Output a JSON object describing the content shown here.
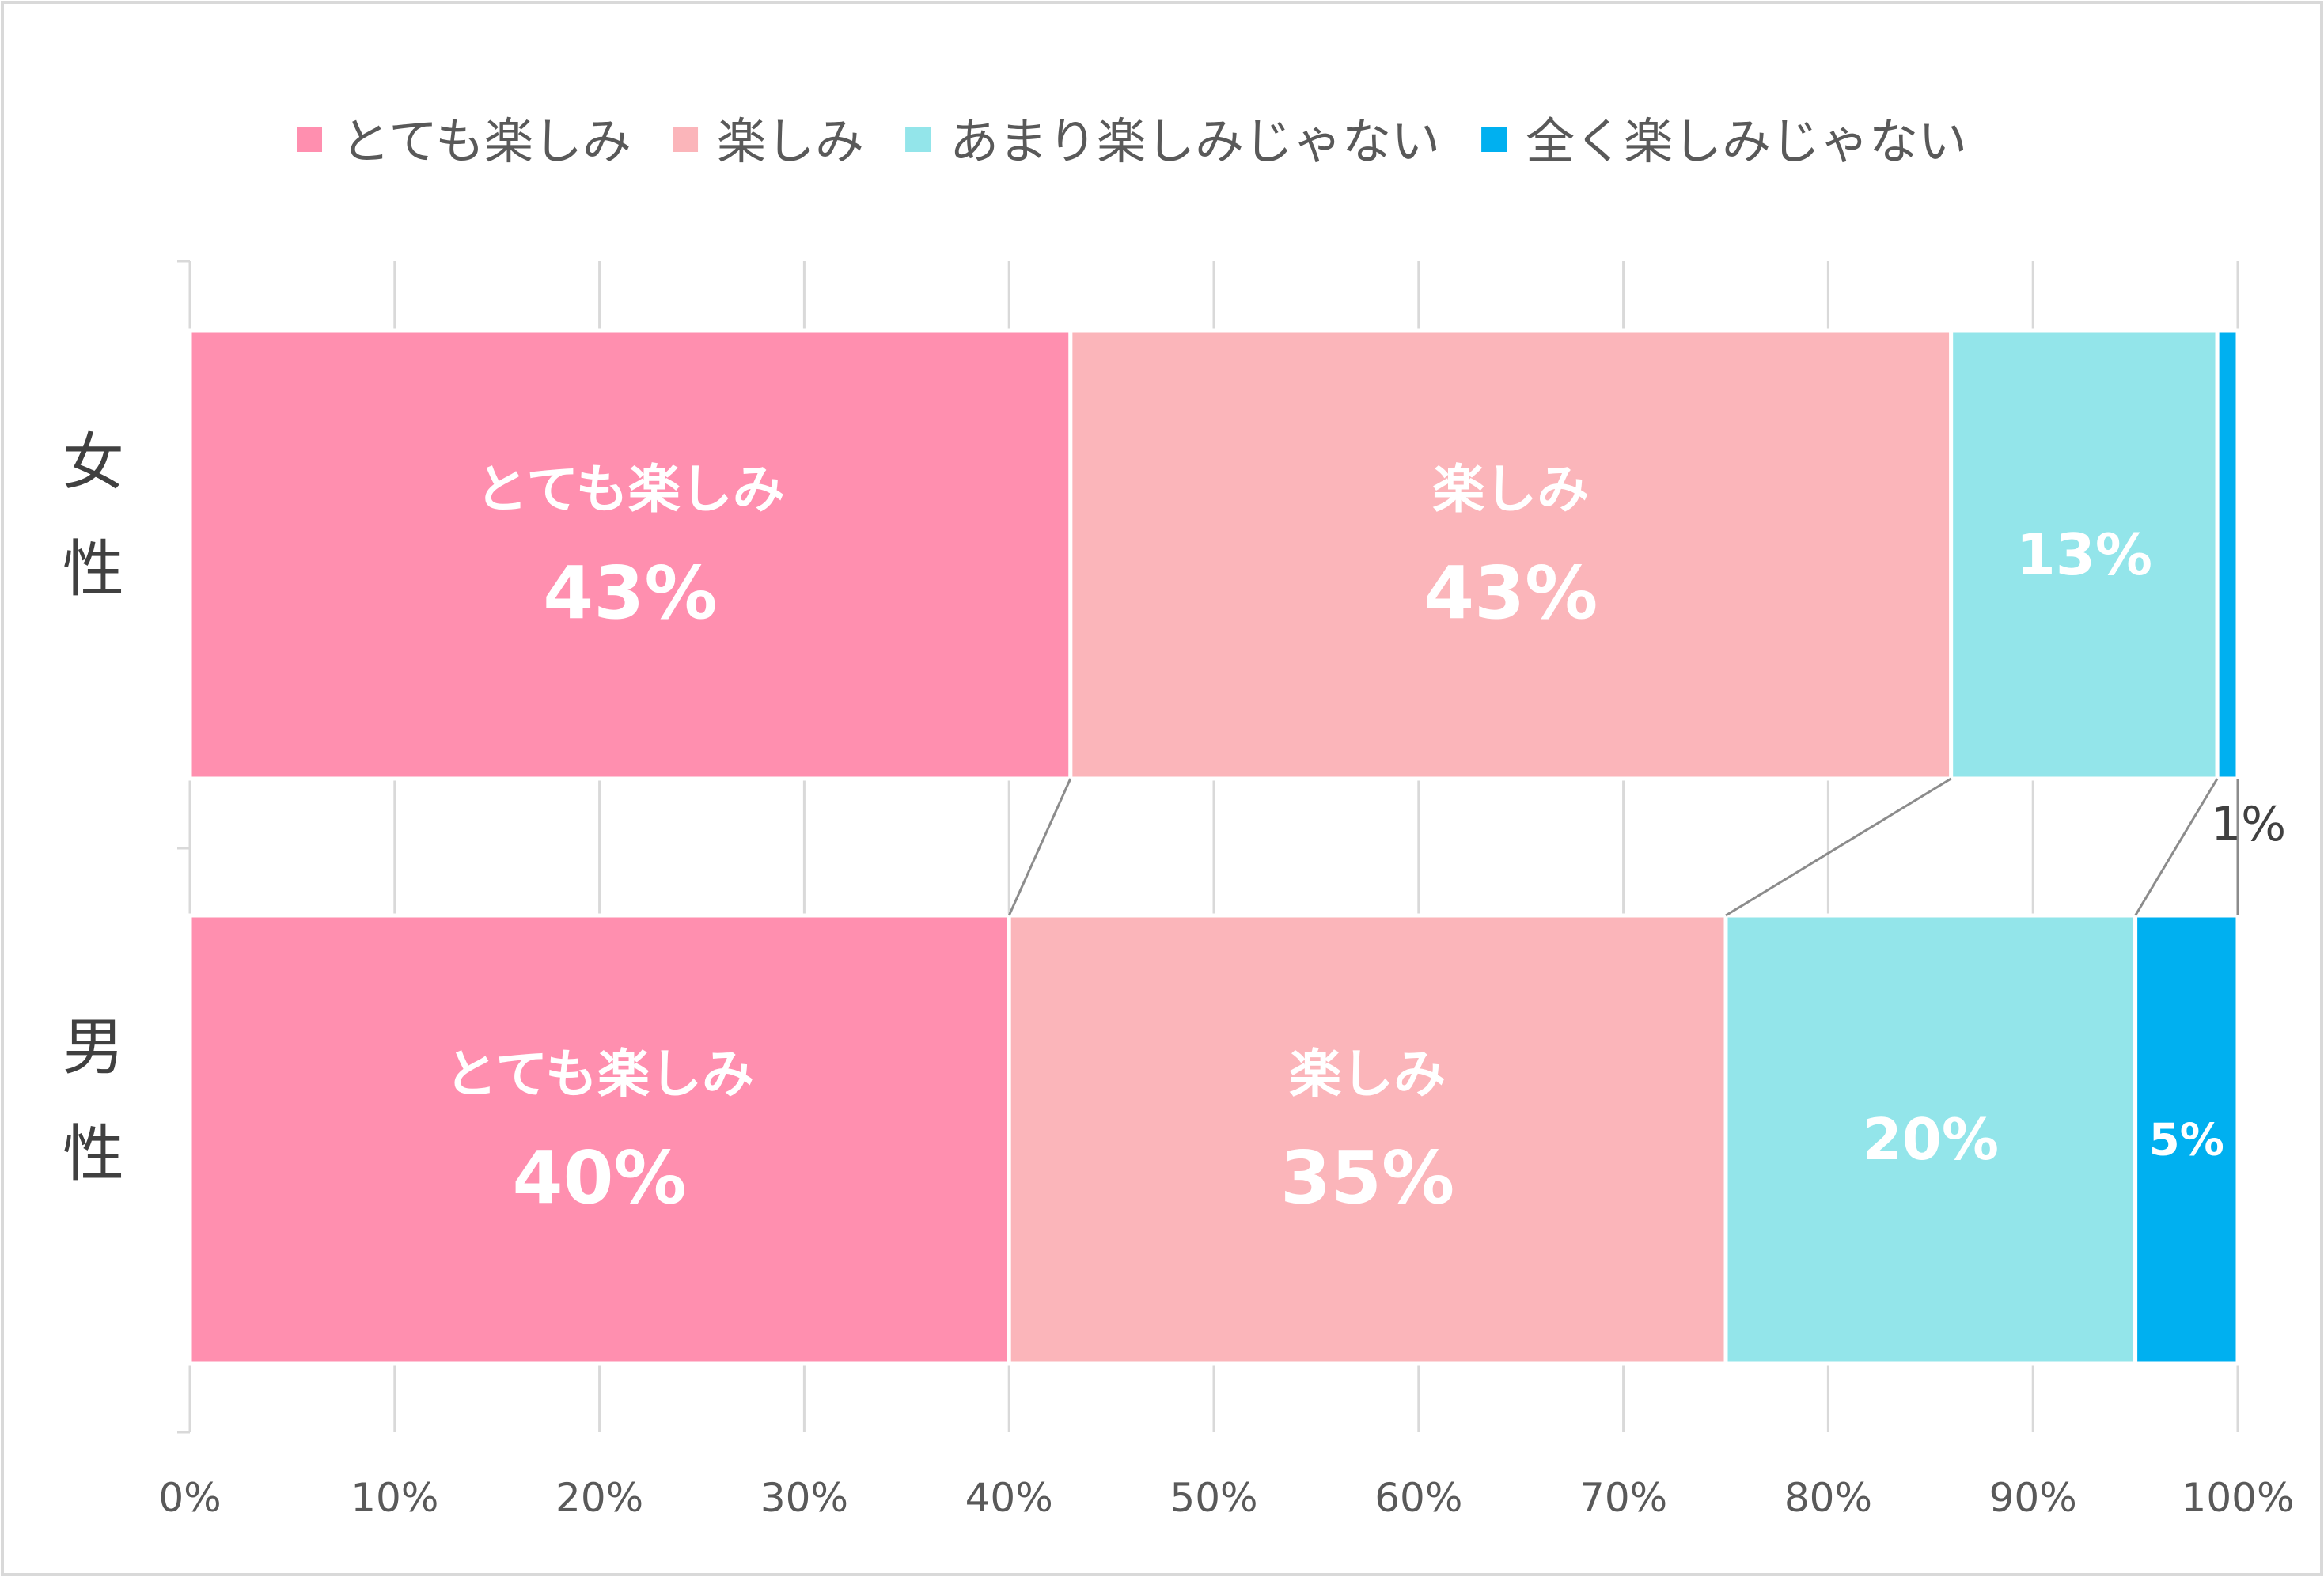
{
  "chart_data": {
    "type": "bar",
    "orientation": "horizontal",
    "stacked": true,
    "percent": true,
    "categories": [
      "女性",
      "男性"
    ],
    "category_display": [
      [
        "女",
        "性"
      ],
      [
        "男",
        "性"
      ]
    ],
    "series": [
      {
        "name": "とても楽しみ",
        "color": "#FF8FAF",
        "values": [
          43,
          40
        ],
        "inner_label": true
      },
      {
        "name": "楽しみ",
        "color": "#FBB5BA",
        "values": [
          43,
          35
        ],
        "inner_label": true
      },
      {
        "name": "あまり楽しみじゃない",
        "color": "#93E5EA",
        "values": [
          13,
          20
        ],
        "inner_label": false
      },
      {
        "name": "全く楽しみじゃない",
        "color": "#00B0F0",
        "values": [
          1,
          5
        ],
        "inner_label": false
      }
    ],
    "data_labels": [
      [
        "43%",
        "43%",
        "13%",
        "1%"
      ],
      [
        "40%",
        "35%",
        "20%",
        "5%"
      ]
    ],
    "xlim": [
      0,
      100
    ],
    "xticks": [
      "0%",
      "10%",
      "20%",
      "30%",
      "40%",
      "50%",
      "60%",
      "70%",
      "80%",
      "90%",
      "100%"
    ],
    "grid": true,
    "series_lines": true,
    "legend_position": "top"
  }
}
